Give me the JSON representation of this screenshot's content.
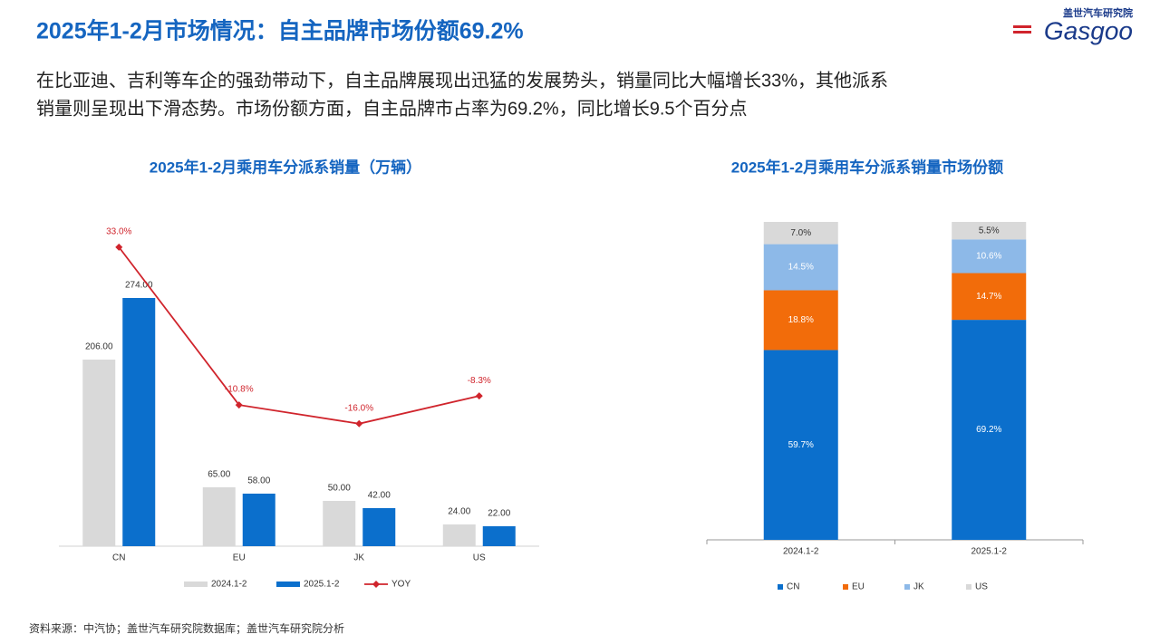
{
  "header": {
    "title": "2025年1-2月市场情况：自主品牌市场份额69.2%",
    "logo_cn": "盖世汽车研究院",
    "logo_en": "Gasgoo"
  },
  "body": [
    "在比亚迪、吉利等车企的强劲带动下，自主品牌展现出迅猛的发展势头，销量同比大幅增长33%，其他派系",
    "销量则呈现出下滑态势。市场份额方面，自主品牌市占率为69.2%，同比增长9.5个百分点"
  ],
  "source": "资料来源：中汽协；盖世汽车研究院数据库；盖世汽车研究院分析",
  "chart_data": [
    {
      "type": "bar_line",
      "title": "2025年1-2月乘用车分派系销量（万辆）",
      "categories": [
        "CN",
        "EU",
        "JK",
        "US"
      ],
      "series": [
        {
          "name": "2024.1-2",
          "color": "#d9d9d9",
          "values": [
            206,
            65,
            50,
            24
          ],
          "value_labels": [
            "206.00",
            "65.00",
            "50.00",
            "24.00"
          ]
        },
        {
          "name": "2025.1-2",
          "color": "#0b6fcc",
          "values": [
            274,
            58,
            42,
            22
          ],
          "value_labels": [
            "274.00",
            "58.00",
            "42.00",
            "22.00"
          ]
        },
        {
          "name": "YOY",
          "type": "line",
          "axis": "y2",
          "color": "#d0242c",
          "values": [
            33.0,
            -10.8,
            -16.0,
            -8.3
          ],
          "value_labels": [
            "33.0%",
            "-10.8%",
            "-16.0%",
            "-8.3%"
          ]
        }
      ],
      "ylim": [
        0,
        350
      ],
      "y2lim": [
        -50,
        38
      ]
    },
    {
      "type": "stacked_bar",
      "title": "2025年1-2月乘用车分派系销量市场份额",
      "categories": [
        "2024.1-2",
        "2025.1-2"
      ],
      "series": [
        {
          "name": "CN",
          "color": "#0b6fcc",
          "values": [
            59.7,
            69.2
          ],
          "value_labels": [
            "59.7%",
            "69.2%"
          ]
        },
        {
          "name": "EU",
          "color": "#f26c0a",
          "values": [
            18.8,
            14.7
          ],
          "value_labels": [
            "18.8%",
            "14.7%"
          ]
        },
        {
          "name": "JK",
          "color": "#8db9e8",
          "values": [
            14.5,
            10.6
          ],
          "value_labels": [
            "14.5%",
            "10.6%"
          ]
        },
        {
          "name": "US",
          "color": "#d9d9d9",
          "values": [
            7.0,
            5.5
          ],
          "value_labels": [
            "7.0%",
            "5.5%"
          ]
        }
      ],
      "ylim": [
        0,
        100
      ]
    }
  ]
}
